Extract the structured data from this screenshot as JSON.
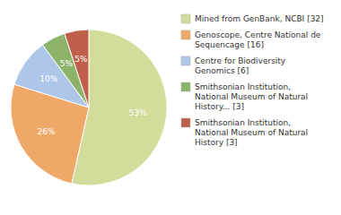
{
  "chart_data": {
    "type": "pie",
    "categories": [
      "Mined from GenBank, NCBI [32]",
      "Genoscope, Centre National de\nSequencage [16]",
      "Centre for Biodiversity\nGenomics [6]",
      "Smithsonian Institution,\nNational Museum of Natural\nHistory... [3]",
      "Smithsonian Institution,\nNational Museum of Natural\nHistory [3]"
    ],
    "values": [
      53,
      26,
      10,
      5,
      5
    ],
    "value_labels": [
      "53%",
      "26%",
      "10%",
      "5%",
      "5%"
    ],
    "colors": [
      "#d4dc9b",
      "#f0a868",
      "#aec6e8",
      "#8db36b",
      "#c0604a"
    ],
    "data_labels": true,
    "legend": "right"
  }
}
